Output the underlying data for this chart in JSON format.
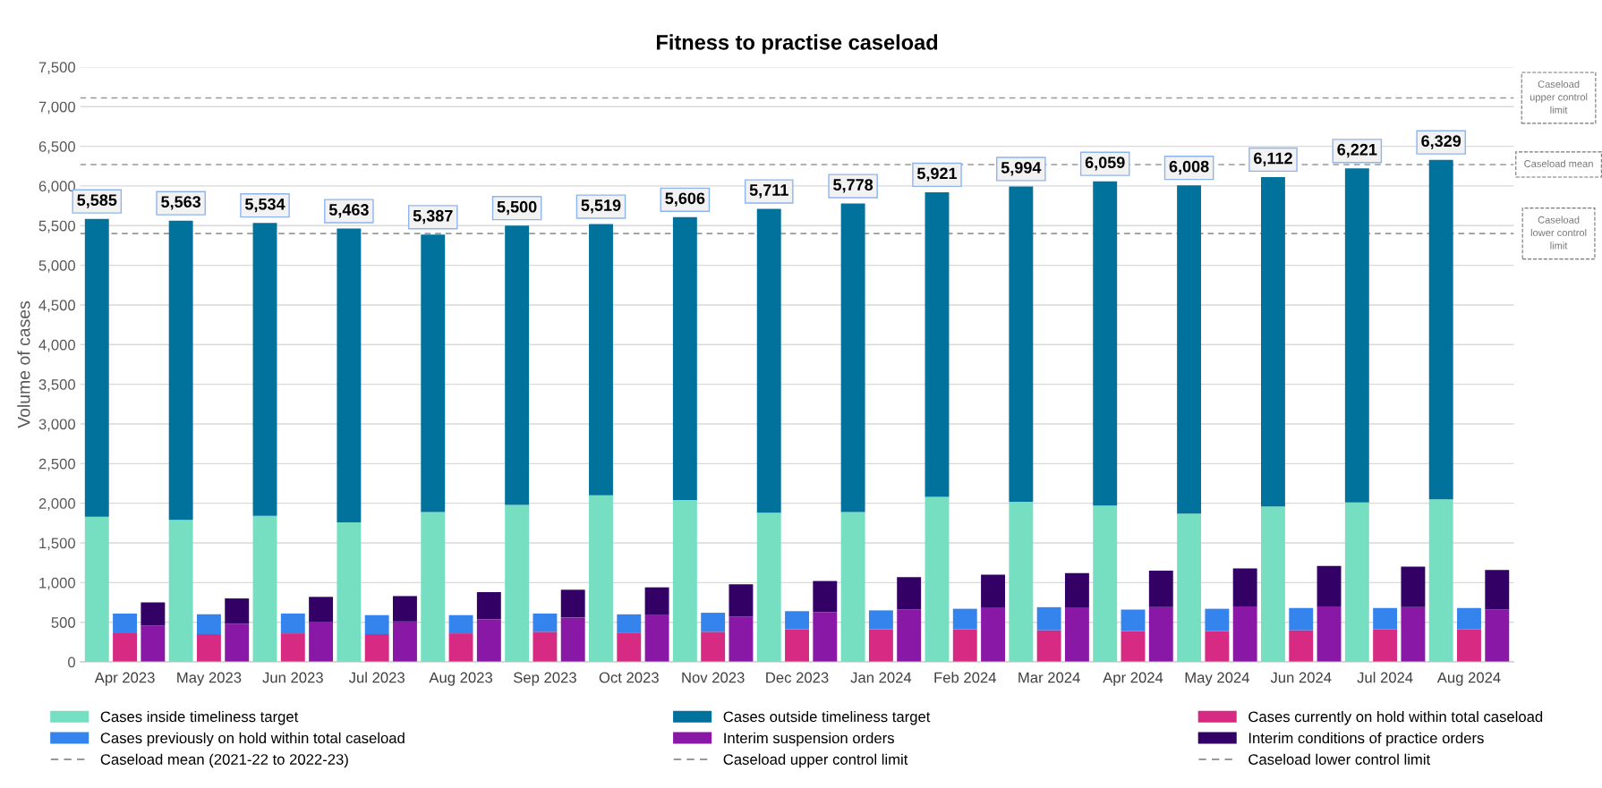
{
  "chart_data": {
    "type": "bar",
    "title": "Fitness to practise caseload",
    "ylabel": "Volume of cases",
    "categories": [
      null,
      "Apr 2023",
      null,
      null,
      "May 2023",
      null,
      null,
      "Jun 2023",
      null,
      null,
      "Jul 2023",
      null,
      null,
      "Aug 2023",
      null,
      null,
      "Sep 2023",
      null,
      null,
      "Oct 2023",
      null,
      null,
      "Nov 2023",
      null,
      null,
      "Dec 2023",
      null,
      null,
      "Jan 2024",
      null,
      null,
      "Feb 2024",
      null,
      null,
      "Mar 2024",
      null,
      null,
      "Apr 2024",
      null,
      null,
      "May 2024",
      null,
      null,
      "Jun 2024",
      null,
      null,
      "Jul 2024",
      null,
      null,
      "Aug 2024",
      null
    ],
    "stacked": true,
    "series": [
      {
        "name": "Cases inside timeliness target",
        "color": "#76dfc1",
        "values": [
          1830,
          null,
          null,
          1790,
          null,
          null,
          1840,
          null,
          null,
          1760,
          null,
          null,
          1890,
          null,
          null,
          1980,
          null,
          null,
          2100,
          null,
          null,
          2040,
          null,
          null,
          1880,
          null,
          null,
          1890,
          null,
          null,
          2080,
          null,
          null,
          2020,
          null,
          null,
          1970,
          null,
          null,
          1870,
          null,
          null,
          1960,
          null,
          null,
          2010,
          null,
          null,
          2050,
          null,
          null
        ]
      },
      {
        "name": "Cases outside timeliness target",
        "color": "#00729c",
        "values": [
          3755,
          null,
          null,
          3773,
          null,
          null,
          3694,
          null,
          null,
          3703,
          null,
          null,
          3497,
          null,
          null,
          3520,
          null,
          null,
          3419,
          null,
          null,
          3566,
          null,
          null,
          3831,
          null,
          null,
          3888,
          null,
          null,
          3841,
          null,
          null,
          3974,
          null,
          null,
          4089,
          null,
          null,
          4138,
          null,
          null,
          4152,
          null,
          null,
          4211,
          null,
          null,
          4279,
          null,
          null
        ]
      },
      {
        "name": "Cases currently on hold within total caseload",
        "color": "#d62a83",
        "values": [
          null,
          360,
          null,
          null,
          350,
          null,
          null,
          360,
          null,
          null,
          350,
          null,
          null,
          360,
          null,
          null,
          380,
          null,
          null,
          370,
          null,
          null,
          380,
          null,
          null,
          410,
          null,
          null,
          410,
          null,
          null,
          410,
          null,
          null,
          400,
          null,
          null,
          390,
          null,
          null,
          390,
          null,
          null,
          400,
          null,
          null,
          410,
          null,
          null,
          410,
          null
        ]
      },
      {
        "name": "Cases previously on hold within total caseload",
        "color": "#3584ee",
        "values": [
          null,
          250,
          null,
          null,
          250,
          null,
          null,
          250,
          null,
          null,
          240,
          null,
          null,
          230,
          null,
          null,
          230,
          null,
          null,
          230,
          null,
          null,
          240,
          null,
          null,
          230,
          null,
          null,
          240,
          null,
          null,
          260,
          null,
          null,
          290,
          null,
          null,
          270,
          null,
          null,
          280,
          null,
          null,
          280,
          null,
          null,
          270,
          null,
          null,
          270,
          null
        ]
      },
      {
        "name": "Interim suspension orders",
        "color": "#8a18a6",
        "values": [
          null,
          null,
          460,
          null,
          null,
          480,
          null,
          null,
          500,
          null,
          null,
          510,
          null,
          null,
          540,
          null,
          null,
          560,
          null,
          null,
          590,
          null,
          null,
          570,
          null,
          null,
          630,
          null,
          null,
          660,
          null,
          null,
          680,
          null,
          null,
          680,
          null,
          null,
          690,
          null,
          null,
          700,
          null,
          null,
          700,
          null,
          null,
          690,
          null,
          null,
          660
        ]
      },
      {
        "name": "Interim conditions of practice orders",
        "color": "#330066",
        "values": [
          null,
          null,
          290,
          null,
          null,
          320,
          null,
          null,
          320,
          null,
          null,
          320,
          null,
          null,
          340,
          null,
          null,
          350,
          null,
          null,
          350,
          null,
          null,
          410,
          null,
          null,
          390,
          null,
          null,
          410,
          null,
          null,
          420,
          null,
          null,
          440,
          null,
          null,
          460,
          null,
          null,
          480,
          null,
          null,
          510,
          null,
          null,
          510,
          null,
          null,
          500
        ]
      }
    ],
    "totals": [
      "5,585",
      null,
      null,
      "5,563",
      null,
      null,
      "5,534",
      null,
      null,
      "5,463",
      null,
      null,
      "5,387",
      null,
      null,
      "5,500",
      null,
      null,
      "5,519",
      null,
      null,
      "5,606",
      null,
      null,
      "5,711",
      null,
      null,
      "5,778",
      null,
      null,
      "5,921",
      null,
      null,
      "5,994",
      null,
      null,
      "6,059",
      null,
      null,
      "6,008",
      null,
      null,
      "6,112",
      null,
      null,
      "6,221",
      null,
      null,
      "6,329",
      null,
      null
    ],
    "ref_lines": [
      {
        "axis": "y",
        "value": 6270,
        "label": "Caseload mean (2021-22 to 2022-23)",
        "color": "#999999",
        "line_style": "dashed"
      },
      {
        "axis": "y",
        "value": 7110,
        "label": "Caseload upper control limit",
        "color": "#999999",
        "line_style": "dashed"
      },
      {
        "axis": "y",
        "value": 5400,
        "label": "Caseload lower control limit",
        "color": "#999999",
        "line_style": "dashed"
      }
    ],
    "annotations": [
      "Caseload upper control limit",
      "Caseload mean",
      "Caseload lower control limit"
    ],
    "ylim": [
      0,
      7500
    ],
    "yticks": [
      {
        "value": 0,
        "label": "0"
      },
      {
        "value": 500,
        "label": "500"
      },
      {
        "value": 1000,
        "label": "1,000"
      },
      {
        "value": 1500,
        "label": "1,500"
      },
      {
        "value": 2000,
        "label": "2,000"
      },
      {
        "value": 2500,
        "label": "2,500"
      },
      {
        "value": 3000,
        "label": "3,000"
      },
      {
        "value": 3500,
        "label": "3,500"
      },
      {
        "value": 4000,
        "label": "4,000"
      },
      {
        "value": 4500,
        "label": "4,500"
      },
      {
        "value": 5000,
        "label": "5,000"
      },
      {
        "value": 5500,
        "label": "5,500"
      },
      {
        "value": 6000,
        "label": "6,000"
      },
      {
        "value": 6500,
        "label": "6,500"
      },
      {
        "value": 7000,
        "label": "7,000"
      },
      {
        "value": 7500,
        "label": "7,500"
      }
    ],
    "grid": "y",
    "legend": "bottom"
  }
}
